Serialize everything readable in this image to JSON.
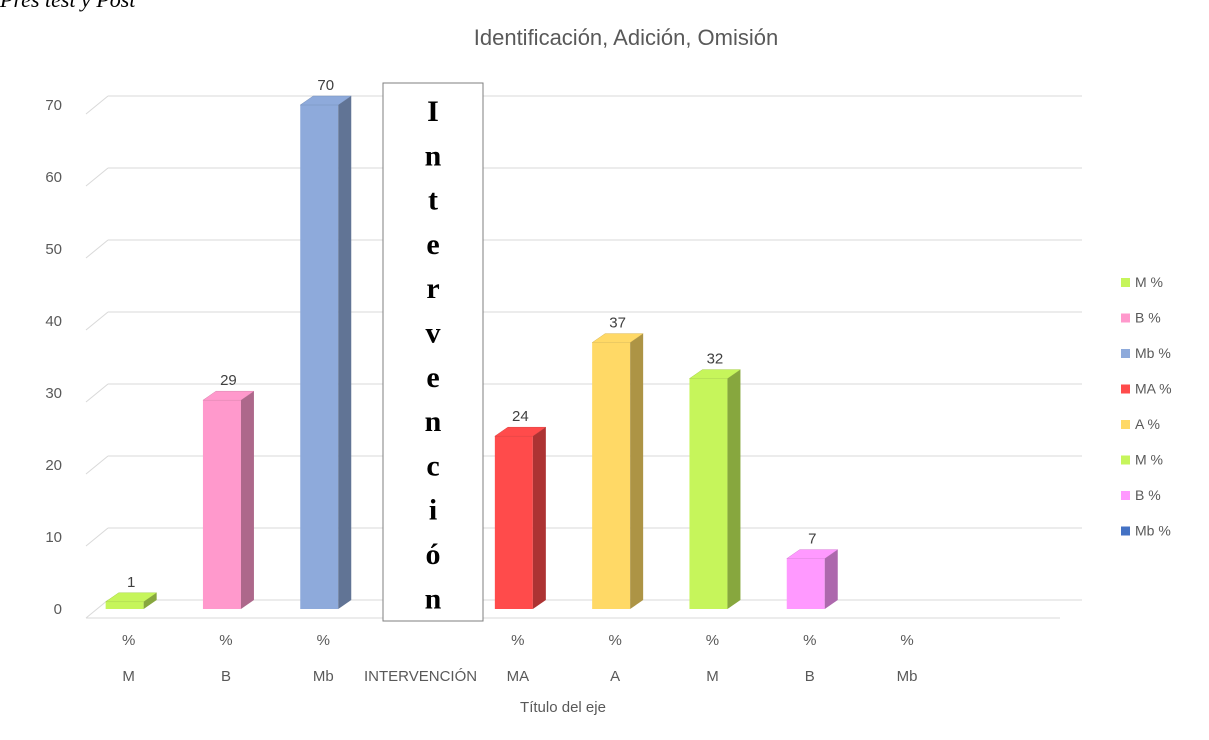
{
  "page_heading": "Pres test y Post",
  "chart_data": {
    "type": "bar",
    "title": "Identificación, Adición, Omisión",
    "xlabel": "Título del eje",
    "ylabel": "",
    "ylim": [
      0,
      70
    ],
    "yticks": [
      0,
      10,
      20,
      30,
      40,
      50,
      60,
      70
    ],
    "grid": true,
    "legend_position": "right",
    "categories": [
      {
        "top": "%",
        "bottom": "M"
      },
      {
        "top": "%",
        "bottom": "B"
      },
      {
        "top": "%",
        "bottom": "Mb"
      },
      {
        "top": "",
        "bottom": "INTERVENCIÓN"
      },
      {
        "top": "%",
        "bottom": "MA"
      },
      {
        "top": "%",
        "bottom": "A"
      },
      {
        "top": "%",
        "bottom": "M"
      },
      {
        "top": "%",
        "bottom": "B"
      },
      {
        "top": "%",
        "bottom": "Mb"
      }
    ],
    "series": [
      {
        "name": "M %",
        "category_index": 0,
        "value": 1,
        "color": "#c6f55b"
      },
      {
        "name": "B %",
        "category_index": 1,
        "value": 29,
        "color": "#ff99cc"
      },
      {
        "name": "Mb %",
        "category_index": 2,
        "value": 70,
        "color": "#8eaadb"
      },
      {
        "name": "MA %",
        "category_index": 4,
        "value": 24,
        "color": "#ff4b4b"
      },
      {
        "name": "A %",
        "category_index": 5,
        "value": 37,
        "color": "#ffd966"
      },
      {
        "name": "M %",
        "category_index": 6,
        "value": 32,
        "color": "#c6f55b"
      },
      {
        "name": "B %",
        "category_index": 7,
        "value": 7,
        "color": "#ff99ff"
      },
      {
        "name": "Mb %",
        "category_index": 8,
        "value": null,
        "color": "#4472c4"
      }
    ],
    "annotation": {
      "category_index": 3,
      "letters": [
        "I",
        "n",
        "t",
        "e",
        "r",
        "v",
        "e",
        "n",
        "c",
        "i",
        "ó",
        "n"
      ]
    }
  }
}
